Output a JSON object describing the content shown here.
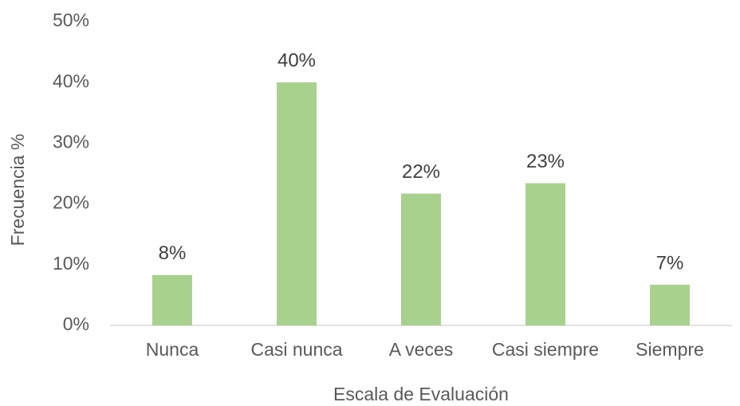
{
  "chart_data": {
    "type": "bar",
    "x_label": "Escala de Evaluación",
    "y_label": "Frecuencia %",
    "categories": [
      "Nunca",
      "Casi nunca",
      "A veces",
      "Casi siempre",
      "Siempre"
    ],
    "values": [
      8.3,
      40.0,
      21.7,
      23.4,
      6.7
    ],
    "value_labels": [
      "8%",
      "40%",
      "22%",
      "23%",
      "7%"
    ],
    "color": "#a9d18e",
    "ylim": [
      0,
      50
    ],
    "yticks": [
      {
        "value": 0,
        "label": "0%"
      },
      {
        "value": 10,
        "label": "10%"
      },
      {
        "value": 20,
        "label": "20%"
      },
      {
        "value": 30,
        "label": "30%"
      },
      {
        "value": 40,
        "label": "40%"
      },
      {
        "value": 50,
        "label": "50%"
      }
    ],
    "grid": false
  }
}
